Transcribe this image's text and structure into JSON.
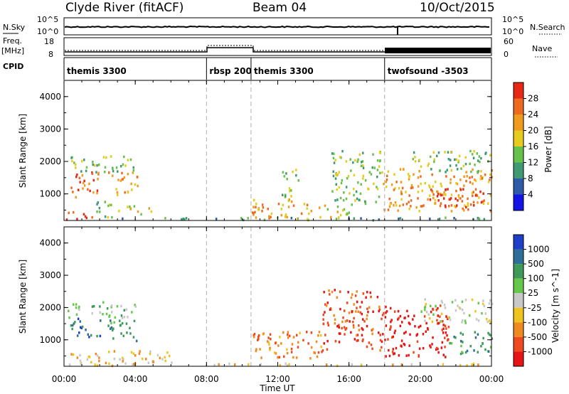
{
  "header": {
    "station": "Clyde River (fitACF)",
    "beam": "Beam 04",
    "date": "10/Oct/2015"
  },
  "strip": {
    "nsky_label": "N.Sky",
    "nsky_ticks": [
      "10^5",
      "10^0"
    ],
    "nsearch_label": "N.Search",
    "nsearch_ticks": [
      "10^5",
      "10^0"
    ],
    "freq_label_1": "Freq.",
    "freq_label_2": "[MHz]",
    "freq_ticks": [
      "18",
      "8"
    ],
    "nave_label": "Nave",
    "nave_ticks": [
      "60",
      "0"
    ],
    "cpid_label": "CPID"
  },
  "cpid_segments": [
    {
      "label": "themis 3300",
      "start_hour": 0
    },
    {
      "label": "rbsp 200",
      "start_hour": 8.0
    },
    {
      "label": "themis 3300",
      "start_hour": 10.5
    },
    {
      "label": "twofsound -3503",
      "start_hour": 18.0
    }
  ],
  "x_axis": {
    "title": "Time UT",
    "ticks": [
      "00:00",
      "04:00",
      "08:00",
      "12:00",
      "16:00",
      "20:00",
      "00:00"
    ],
    "hours": [
      0,
      4,
      8,
      12,
      16,
      20,
      24
    ]
  },
  "power_panel": {
    "ylabel": "Slant Range [km]",
    "yticks": [
      "1000",
      "2000",
      "3000",
      "4000"
    ],
    "colorbar_label": "Power [dB]",
    "colorbar_ticks": [
      "4",
      "8",
      "12",
      "16",
      "20",
      "24",
      "28"
    ],
    "colors": [
      "#1414e6",
      "#2e5aa8",
      "#3f9a74",
      "#66c24a",
      "#e6cc1e",
      "#f09a1e",
      "#ee6a1e",
      "#e62814"
    ]
  },
  "velocity_panel": {
    "ylabel": "Slant Range [km]",
    "yticks": [
      "1000",
      "2000",
      "3000",
      "4000"
    ],
    "colorbar_label": "Velocity [m s^-1]",
    "colorbar_ticks": [
      "1000",
      "500",
      "100",
      "25",
      "-25",
      "-100",
      "-500",
      "-1000"
    ],
    "colors": [
      "#1e40c8",
      "#2e6f9a",
      "#3f9a5a",
      "#66c84a",
      "#c8c8c8",
      "#f0c41e",
      "#f08a1e",
      "#ee4a1e",
      "#e61414"
    ]
  },
  "chart_data": {
    "type": "heatmap",
    "x_range_hours": [
      0,
      24
    ],
    "y_range_km": [
      180,
      4500
    ],
    "mode_boundaries_hours": [
      8.0,
      10.5,
      18.0
    ],
    "power_regions": [
      {
        "t0": 0.3,
        "t1": 2.0,
        "r0": 900,
        "r1": 1700,
        "level": 6
      },
      {
        "t0": 2.4,
        "t1": 4.1,
        "r0": 1000,
        "r1": 1700,
        "level": 5
      },
      {
        "t0": 0.2,
        "t1": 4.0,
        "r0": 1700,
        "r1": 2200,
        "level": 3
      },
      {
        "t0": 0.0,
        "t1": 1.6,
        "r0": 200,
        "r1": 500,
        "level": 7
      },
      {
        "t0": 1.8,
        "t1": 3.2,
        "r0": 300,
        "r1": 800,
        "level": 3
      },
      {
        "t0": 3.4,
        "t1": 5.0,
        "r0": 400,
        "r1": 700,
        "level": 4
      },
      {
        "t0": 0.0,
        "t1": 24.0,
        "r0": 180,
        "r1": 300,
        "level": 2
      },
      {
        "t0": 10.5,
        "t1": 14.0,
        "r0": 250,
        "r1": 900,
        "level": 5
      },
      {
        "t0": 14.0,
        "t1": 16.0,
        "r0": 300,
        "r1": 700,
        "level": 4
      },
      {
        "t0": 12.2,
        "t1": 13.2,
        "r0": 900,
        "r1": 1800,
        "level": 3
      },
      {
        "t0": 15.0,
        "t1": 17.8,
        "r0": 700,
        "r1": 2400,
        "level": 3
      },
      {
        "t0": 17.8,
        "t1": 24.0,
        "r0": 500,
        "r1": 1800,
        "level": 5
      },
      {
        "t0": 20.5,
        "t1": 23.6,
        "r0": 600,
        "r1": 1200,
        "level": 7
      },
      {
        "t0": 19.5,
        "t1": 24.0,
        "r0": 1700,
        "r1": 2400,
        "level": 3
      }
    ],
    "velocity_regions": [
      {
        "t0": 0.3,
        "t1": 2.0,
        "r0": 1100,
        "r1": 1700,
        "level": 1
      },
      {
        "t0": 2.4,
        "t1": 4.1,
        "r0": 1000,
        "r1": 1700,
        "level": 2
      },
      {
        "t0": 0.2,
        "t1": 4.0,
        "r0": 1700,
        "r1": 2200,
        "level": 3
      },
      {
        "t0": 0.0,
        "t1": 6.0,
        "r0": 300,
        "r1": 700,
        "level": 5
      },
      {
        "t0": 0.0,
        "t1": 24.0,
        "r0": 180,
        "r1": 300,
        "level": 5
      },
      {
        "t0": 10.5,
        "t1": 14.5,
        "r0": 400,
        "r1": 1300,
        "level": 6
      },
      {
        "t0": 14.5,
        "t1": 17.8,
        "r0": 700,
        "r1": 2600,
        "level": 7
      },
      {
        "t0": 17.8,
        "t1": 21.6,
        "r0": 500,
        "r1": 2100,
        "level": 8
      },
      {
        "t0": 21.5,
        "t1": 24.0,
        "r0": 600,
        "r1": 1300,
        "level": 2
      },
      {
        "t0": 20.0,
        "t1": 24.0,
        "r0": 1500,
        "r1": 2300,
        "level": 4
      }
    ]
  }
}
